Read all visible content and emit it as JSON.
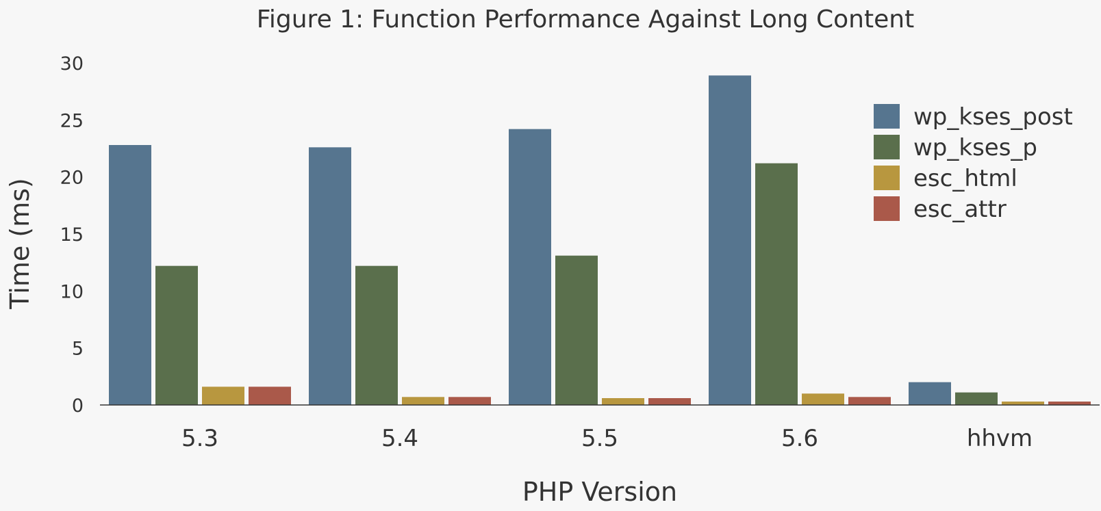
{
  "chart_data": {
    "type": "bar",
    "title": "Figure 1: Function Performance Against Long Content",
    "xlabel": "PHP Version",
    "ylabel": "Time (ms)",
    "categories": [
      "5.3",
      "5.4",
      "5.5",
      "5.6",
      "hhvm"
    ],
    "ylim": [
      0,
      30
    ],
    "yticks": [
      "0",
      "5",
      "10",
      "15",
      "20",
      "25",
      "30"
    ],
    "grid": false,
    "legend_position": "top-right",
    "series": [
      {
        "name": "wp_kses_post",
        "color": "#56758f",
        "values": [
          22.8,
          22.6,
          24.2,
          28.9,
          2.0
        ]
      },
      {
        "name": "wp_kses_p",
        "color": "#5a6f4c",
        "values": [
          12.2,
          12.2,
          13.1,
          21.2,
          1.1
        ]
      },
      {
        "name": "esc_html",
        "color": "#b8973f",
        "values": [
          1.6,
          0.7,
          0.6,
          1.0,
          0.3
        ]
      },
      {
        "name": "esc_attr",
        "color": "#aa594a",
        "values": [
          1.6,
          0.7,
          0.6,
          0.7,
          0.3
        ]
      }
    ]
  }
}
